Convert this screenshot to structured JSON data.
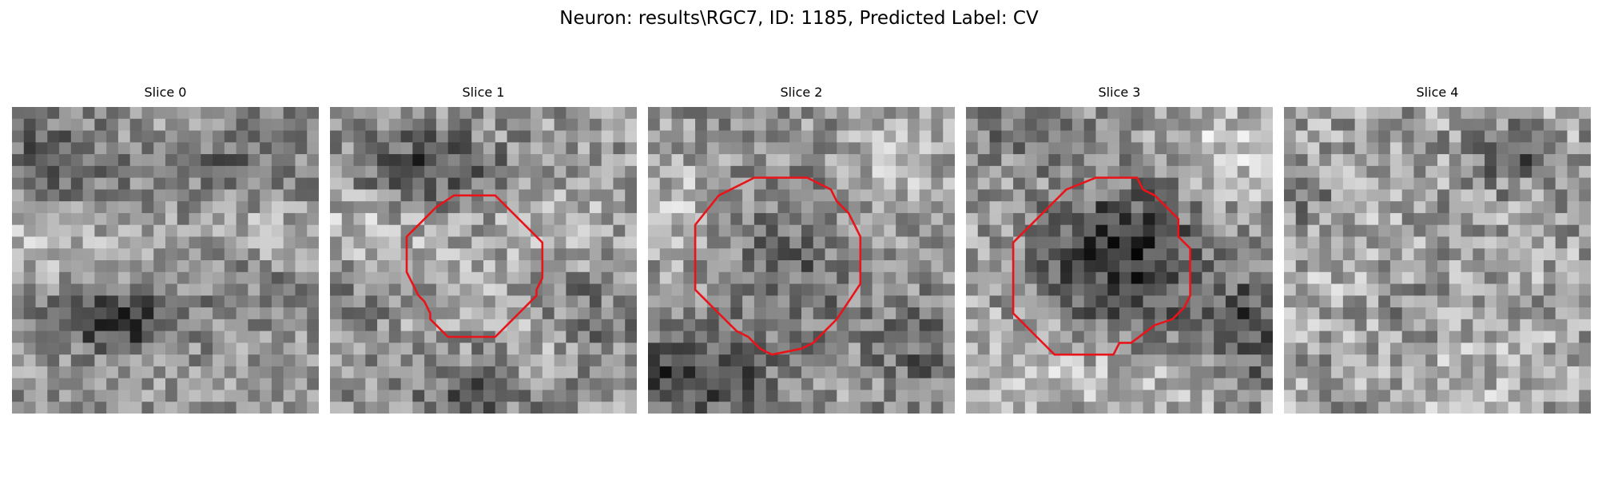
{
  "figure": {
    "title": "Neuron: results\\RGC7, ID: 1185, Predicted Label: CV"
  },
  "panels": [
    {
      "title": "Slice 0",
      "has_roi": false
    },
    {
      "title": "Slice 1",
      "has_roi": true
    },
    {
      "title": "Slice 2",
      "has_roi": true
    },
    {
      "title": "Slice 3",
      "has_roi": true
    },
    {
      "title": "Slice 4",
      "has_roi": false
    }
  ],
  "colors": {
    "background": "#ffffff",
    "roi_outline": "#e8141a",
    "colormap": "grayscale"
  }
}
